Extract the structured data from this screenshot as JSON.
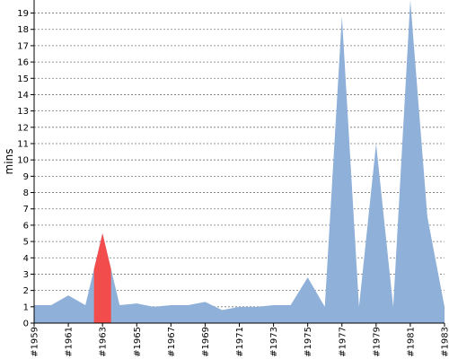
{
  "chart_data": {
    "type": "area",
    "y_label": "mins",
    "categories": [
      "#1959",
      null,
      "#1961",
      null,
      "#1963",
      null,
      "#1965",
      null,
      "#1967",
      null,
      "#1969",
      null,
      "#1971",
      null,
      "#1973",
      null,
      "#1975",
      null,
      "#1977",
      null,
      "#1979",
      null,
      "#1981",
      null,
      "#1983"
    ],
    "values": [
      1.1,
      1.1,
      1.7,
      1.1,
      5.5,
      1.1,
      1.2,
      1.0,
      1.1,
      1.1,
      1.3,
      0.8,
      1.0,
      1.0,
      1.1,
      1.1,
      2.8,
      1.0,
      18.8,
      1.0,
      11.0,
      1.0,
      19.8,
      6.5,
      1.0
    ],
    "color": "#8fb0d9",
    "highlight_index": 4,
    "highlight_color": "#f24c4c",
    "ylim": [
      0,
      19.8
    ],
    "yticks": [
      0,
      1,
      2,
      3,
      4,
      5,
      6,
      7,
      8,
      9,
      10,
      11,
      12,
      13,
      14,
      15,
      16,
      17,
      18,
      19
    ],
    "grid": true
  }
}
